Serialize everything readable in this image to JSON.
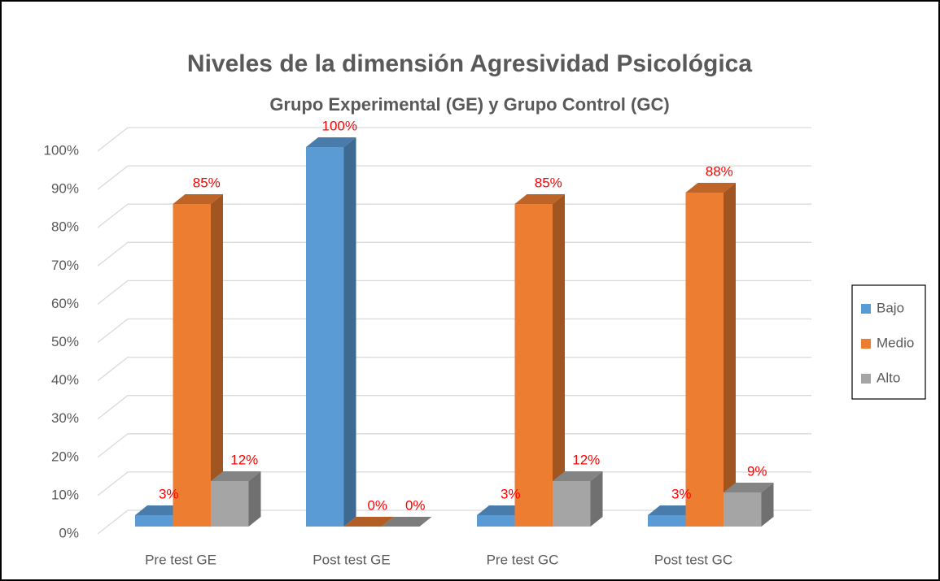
{
  "chart_data": {
    "type": "bar3d",
    "title": "Niveles de la dimensión Agresividad Psicológica",
    "subtitle": "Grupo Experimental (GE) y Grupo Control (GC)",
    "categories": [
      "Pre test GE",
      "Post test GE",
      "Pre test GC",
      "Post test GC"
    ],
    "series": [
      {
        "name": "Bajo",
        "color": "#5b9bd5",
        "values": [
          3,
          100,
          3,
          3
        ],
        "value_labels": [
          "3%",
          "100%",
          "3%",
          "3%"
        ]
      },
      {
        "name": "Medio",
        "color": "#ed7d31",
        "values": [
          85,
          0,
          85,
          88
        ],
        "value_labels": [
          "85%",
          "0%",
          "85%",
          "88%"
        ]
      },
      {
        "name": "Alto",
        "color": "#a5a5a5",
        "values": [
          12,
          0,
          12,
          9
        ],
        "value_labels": [
          "12%",
          "0%",
          "12%",
          "9%"
        ]
      }
    ],
    "ylim": [
      0,
      100
    ],
    "yticks": [
      {
        "value": 0,
        "label": "0%"
      },
      {
        "value": 10,
        "label": "10%"
      },
      {
        "value": 20,
        "label": "20%"
      },
      {
        "value": 30,
        "label": "30%"
      },
      {
        "value": 40,
        "label": "40%"
      },
      {
        "value": 50,
        "label": "50%"
      },
      {
        "value": 60,
        "label": "60%"
      },
      {
        "value": 70,
        "label": "70%"
      },
      {
        "value": 80,
        "label": "80%"
      },
      {
        "value": 90,
        "label": "90%"
      },
      {
        "value": 100,
        "label": "100%"
      }
    ],
    "grid": true,
    "legend": "right",
    "label_color": "#ff0000"
  }
}
